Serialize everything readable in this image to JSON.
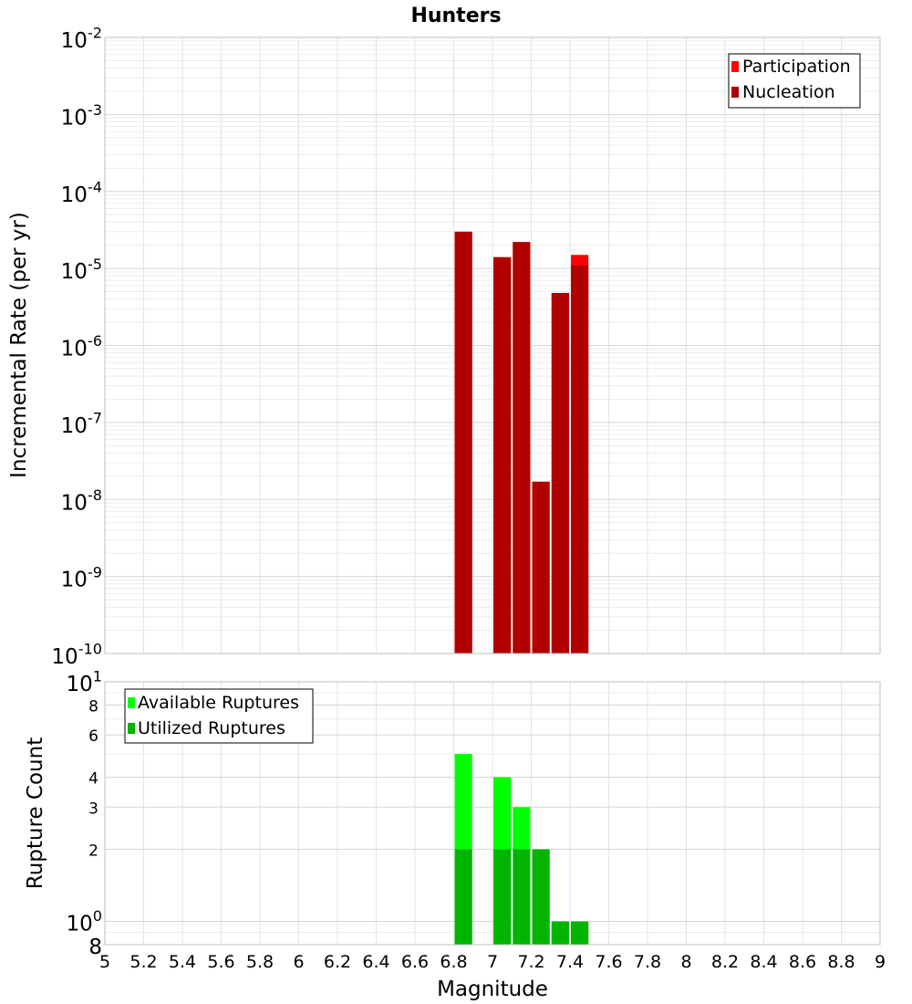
{
  "title": "Hunters",
  "chart_data": [
    {
      "type": "bar",
      "yscale": "log",
      "ylabel": "Incremental Rate (per yr)",
      "xlim": [
        5,
        9
      ],
      "ylim": [
        1e-10,
        0.01
      ],
      "grid": true,
      "legend_position": "top-right",
      "y_ticks": [
        {
          "value": 0.01,
          "base": "10",
          "exp": "-2"
        },
        {
          "value": 0.001,
          "base": "10",
          "exp": "-3"
        },
        {
          "value": 0.0001,
          "base": "10",
          "exp": "-4"
        },
        {
          "value": 1e-05,
          "base": "10",
          "exp": "-5"
        },
        {
          "value": 1e-06,
          "base": "10",
          "exp": "-6"
        },
        {
          "value": 1e-07,
          "base": "10",
          "exp": "-7"
        },
        {
          "value": 1e-08,
          "base": "10",
          "exp": "-8"
        },
        {
          "value": 1e-09,
          "base": "10",
          "exp": "-9"
        },
        {
          "value": 1e-10,
          "base": "10",
          "exp": "-10"
        }
      ],
      "bar_width": 0.09,
      "series": [
        {
          "name": "Participation",
          "color": "#ff0000",
          "x": [
            6.85,
            7.05,
            7.15,
            7.25,
            7.35,
            7.45
          ],
          "values": [
            3e-05,
            1.4e-05,
            2.2e-05,
            1.7e-08,
            4.8e-06,
            1.5e-05
          ]
        },
        {
          "name": "Nucleation",
          "color": "#b00000",
          "x": [
            6.85,
            7.05,
            7.15,
            7.25,
            7.35,
            7.45
          ],
          "values": [
            3e-05,
            1.4e-05,
            2.2e-05,
            1.7e-08,
            4.8e-06,
            1.1e-05
          ]
        }
      ]
    },
    {
      "type": "bar",
      "yscale": "log",
      "xlabel": "Magnitude",
      "ylabel": "Rupture Count",
      "xlim": [
        5,
        9
      ],
      "ylim": [
        0.8,
        10
      ],
      "grid": true,
      "legend_position": "top-left",
      "x_ticks": [
        "5",
        "5.2",
        "5.4",
        "5.6",
        "5.8",
        "6",
        "6.2",
        "6.4",
        "6.6",
        "6.8",
        "7",
        "7.2",
        "7.4",
        "7.6",
        "7.8",
        "8",
        "8.2",
        "8.4",
        "8.6",
        "8.8",
        "9"
      ],
      "y_ticks": [
        {
          "value": 10,
          "base": "10",
          "exp": "1"
        },
        {
          "value": 8,
          "label": "8"
        },
        {
          "value": 6,
          "label": "6"
        },
        {
          "value": 4,
          "label": "4"
        },
        {
          "value": 3,
          "label": "3"
        },
        {
          "value": 2,
          "label": "2"
        },
        {
          "value": 1,
          "base": "10",
          "exp": "0"
        },
        {
          "value": 0.8,
          "label": "8"
        }
      ],
      "bar_width": 0.09,
      "series": [
        {
          "name": "Available Ruptures",
          "color": "#00ff00",
          "x": [
            6.85,
            7.05,
            7.15,
            7.25,
            7.35,
            7.45
          ],
          "values": [
            5,
            4,
            3,
            2,
            1,
            1
          ]
        },
        {
          "name": "Utilized Ruptures",
          "color": "#00b400",
          "x": [
            6.85,
            7.05,
            7.15,
            7.25,
            7.35,
            7.45
          ],
          "values": [
            2,
            2,
            2,
            2,
            1,
            1
          ]
        }
      ]
    }
  ]
}
